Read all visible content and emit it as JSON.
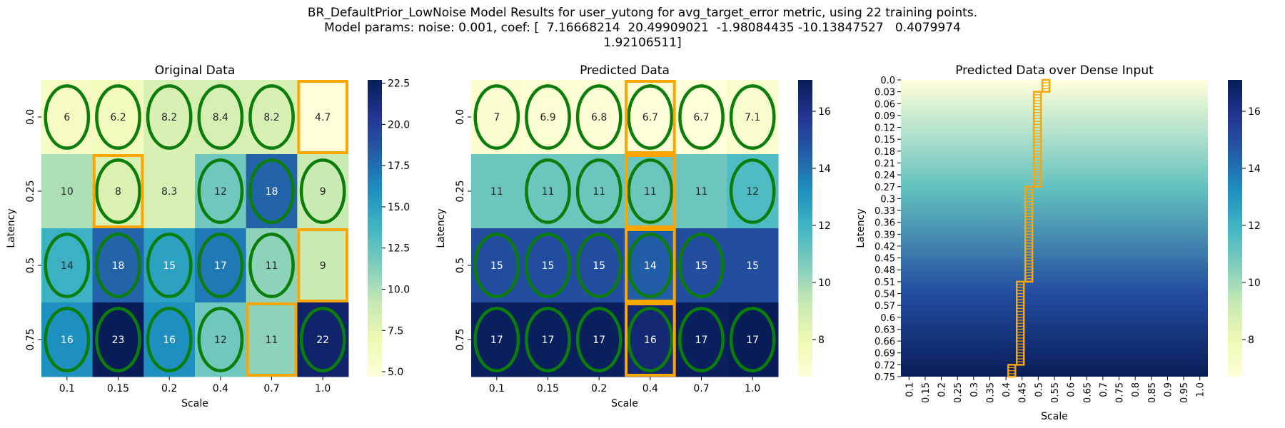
{
  "figure": {
    "title_lines": [
      "BR_DefaultPrior_LowNoise Model Results for user_yutong for avg_target_error metric, using 22 training points.",
      "Model params: noise: 0.001, coef: [  7.16668214  20.49909021  -1.98084435 -10.13847527   0.4079974",
      "1.92106511]"
    ]
  },
  "colors": {
    "cmap": [
      "#ffffd9",
      "#edf8b1",
      "#c7e9b4",
      "#7fcdbb",
      "#41b6c4",
      "#1d91c0",
      "#225ea8",
      "#253494",
      "#081d58"
    ],
    "ellipse": "#0a7d0a",
    "highlight": "#ffa500"
  },
  "chart_data": [
    {
      "type": "heatmap",
      "title": "Original Data",
      "xlabel": "Scale",
      "ylabel": "Latency",
      "x_categories": [
        "0.1",
        "0.15",
        "0.2",
        "0.4",
        "0.7",
        "1.0"
      ],
      "y_categories": [
        "0.0",
        "0.25",
        "0.5",
        "0.75"
      ],
      "values": [
        [
          6,
          6.2,
          8.2,
          8.4,
          8.2,
          4.7
        ],
        [
          10,
          8,
          8.3,
          12,
          18,
          9
        ],
        [
          14,
          18,
          15,
          17,
          11,
          9
        ],
        [
          16,
          23,
          16,
          12,
          11,
          22
        ]
      ],
      "value_labels": [
        [
          "6",
          "6.2",
          "8.2",
          "8.4",
          "8.2",
          "4.7"
        ],
        [
          "10",
          "8",
          "8.3",
          "12",
          "18",
          "9"
        ],
        [
          "14",
          "18",
          "15",
          "17",
          "11",
          "9"
        ],
        [
          "16",
          "23",
          "16",
          "12",
          "11",
          "22"
        ]
      ],
      "vmin": 4.7,
      "vmax": 22.7,
      "colorbar_ticks": [
        5.0,
        7.5,
        10.0,
        12.5,
        15.0,
        17.5,
        20.0,
        22.5
      ],
      "colorbar_tick_labels": [
        "5.0",
        "7.5",
        "10.0",
        "12.5",
        "15.0",
        "17.5",
        "20.0",
        "22.5"
      ],
      "circled": [
        [
          true,
          true,
          true,
          true,
          true,
          false
        ],
        [
          false,
          true,
          false,
          true,
          true,
          true
        ],
        [
          true,
          true,
          true,
          true,
          true,
          false
        ],
        [
          true,
          true,
          true,
          true,
          false,
          true
        ]
      ],
      "highlighted": [
        [
          0,
          5
        ],
        [
          1,
          1
        ],
        [
          2,
          5
        ],
        [
          3,
          4
        ]
      ]
    },
    {
      "type": "heatmap",
      "title": "Predicted Data",
      "xlabel": "Scale",
      "ylabel": "Latency",
      "x_categories": [
        "0.1",
        "0.15",
        "0.2",
        "0.4",
        "0.7",
        "1.0"
      ],
      "y_categories": [
        "0.0",
        "0.25",
        "0.5",
        "0.75"
      ],
      "values": [
        [
          7,
          6.9,
          6.8,
          6.7,
          6.7,
          7.1
        ],
        [
          11,
          11,
          11,
          11,
          11,
          11.6
        ],
        [
          15,
          15,
          15,
          14.5,
          15,
          15
        ],
        [
          17,
          17,
          17,
          16.5,
          17,
          17.2
        ]
      ],
      "value_labels": [
        [
          "7",
          "6.9",
          "6.8",
          "6.7",
          "6.7",
          "7.1"
        ],
        [
          "11",
          "11",
          "11",
          "11",
          "11",
          "12"
        ],
        [
          "15",
          "15",
          "15",
          "14",
          "15",
          "15"
        ],
        [
          "17",
          "17",
          "17",
          "16",
          "17",
          "17"
        ]
      ],
      "vmin": 6.7,
      "vmax": 17.1,
      "colorbar_ticks": [
        8,
        10,
        12,
        14,
        16
      ],
      "colorbar_tick_labels": [
        "8",
        "10",
        "12",
        "14",
        "16"
      ],
      "circled": [
        [
          true,
          true,
          true,
          true,
          true,
          true
        ],
        [
          false,
          true,
          true,
          true,
          false,
          true
        ],
        [
          true,
          true,
          true,
          true,
          true,
          false
        ],
        [
          true,
          true,
          true,
          true,
          true,
          true
        ]
      ],
      "highlighted": [
        [
          0,
          3
        ],
        [
          1,
          3
        ],
        [
          2,
          3
        ],
        [
          3,
          3
        ]
      ]
    },
    {
      "type": "heatmap",
      "title": "Predicted Data over Dense Input",
      "xlabel": "Scale",
      "ylabel": "Latency",
      "x_tick_labels": [
        "0.1",
        "0.15",
        "0.2",
        "0.25",
        "0.3",
        "0.35",
        "0.4",
        "0.45",
        "0.5",
        "0.55",
        "0.6",
        "0.65",
        "0.7",
        "0.75",
        "0.8",
        "0.85",
        "0.9",
        "0.95",
        "1.0"
      ],
      "y_tick_labels": [
        "0.0",
        "0.03",
        "0.06",
        "0.09",
        "0.12",
        "0.15",
        "0.18",
        "0.21",
        "0.24",
        "0.27",
        "0.3",
        "0.33",
        "0.36",
        "0.39",
        "0.42",
        "0.45",
        "0.48",
        "0.51",
        "0.54",
        "0.57",
        "0.6",
        "0.63",
        "0.66",
        "0.69",
        "0.72",
        "0.75"
      ],
      "x_range": [
        0.1,
        1.0
      ],
      "y_range": [
        0.0,
        0.75
      ],
      "vmin": 6.7,
      "vmax": 17.1,
      "colorbar_ticks": [
        8,
        10,
        12,
        14,
        16
      ],
      "colorbar_tick_labels": [
        "8",
        "10",
        "12",
        "14",
        "16"
      ],
      "min_path": [
        {
          "y_from": 0.0,
          "y_to": 0.03,
          "x": 0.525
        },
        {
          "y_from": 0.03,
          "y_to": 0.27,
          "x": 0.5
        },
        {
          "y_from": 0.27,
          "y_to": 0.51,
          "x": 0.475
        },
        {
          "y_from": 0.51,
          "y_to": 0.72,
          "x": 0.45
        },
        {
          "y_from": 0.72,
          "y_to": 0.75,
          "x": 0.425
        }
      ]
    }
  ]
}
